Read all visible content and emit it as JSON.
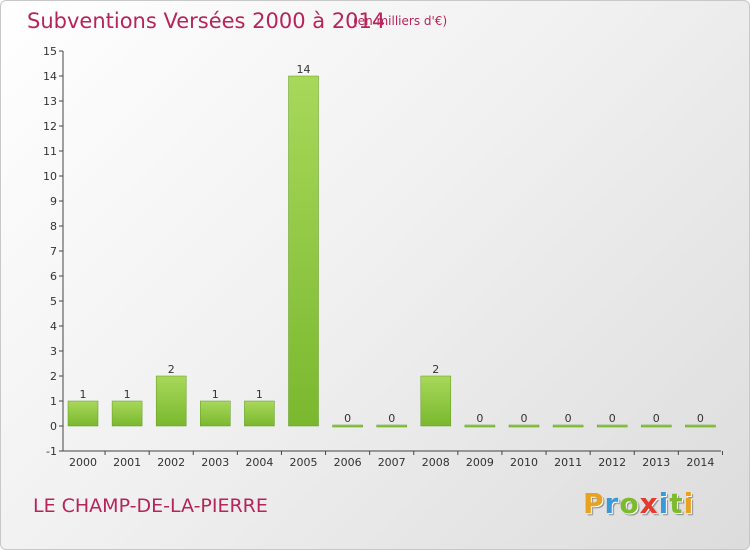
{
  "header": {
    "title": "Subventions Versées 2000 à 2014",
    "unit": "(en milliers d'€)"
  },
  "footer": {
    "commune": "LE CHAMP-DE-LA-PIERRE",
    "logo_letters": [
      "P",
      "r",
      "o",
      "x",
      "i",
      "t",
      "i"
    ],
    "logo_colors": [
      "#e8a21f",
      "#3a9ad9",
      "#7dbb2e",
      "#e23a2e",
      "#3a9ad9",
      "#7dbb2e",
      "#e8a21f"
    ]
  },
  "chart_data": {
    "type": "bar",
    "title": "Subventions Versées 2000 à 2014",
    "categories": [
      "2000",
      "2001",
      "2002",
      "2003",
      "2004",
      "2005",
      "2006",
      "2007",
      "2008",
      "2009",
      "2010",
      "2011",
      "2012",
      "2013",
      "2014"
    ],
    "values": [
      1,
      1,
      2,
      1,
      1,
      14,
      0,
      0,
      2,
      0,
      0,
      0,
      0,
      0,
      0
    ],
    "value_labels": [
      "1",
      "1",
      "2",
      "1",
      "1",
      "14",
      "0",
      "0",
      "2",
      "0",
      "0",
      "0",
      "0",
      "0",
      "0"
    ],
    "y_ticks": [
      "-1",
      "0",
      "1",
      "2",
      "3",
      "4",
      "5",
      "6",
      "7",
      "8",
      "9",
      "10",
      "11",
      "12",
      "13",
      "14",
      "15"
    ],
    "ylim": [
      -1,
      15
    ],
    "grid": false,
    "bar_color": "#7ab82e",
    "bar_color_light": "#a8d85a"
  }
}
